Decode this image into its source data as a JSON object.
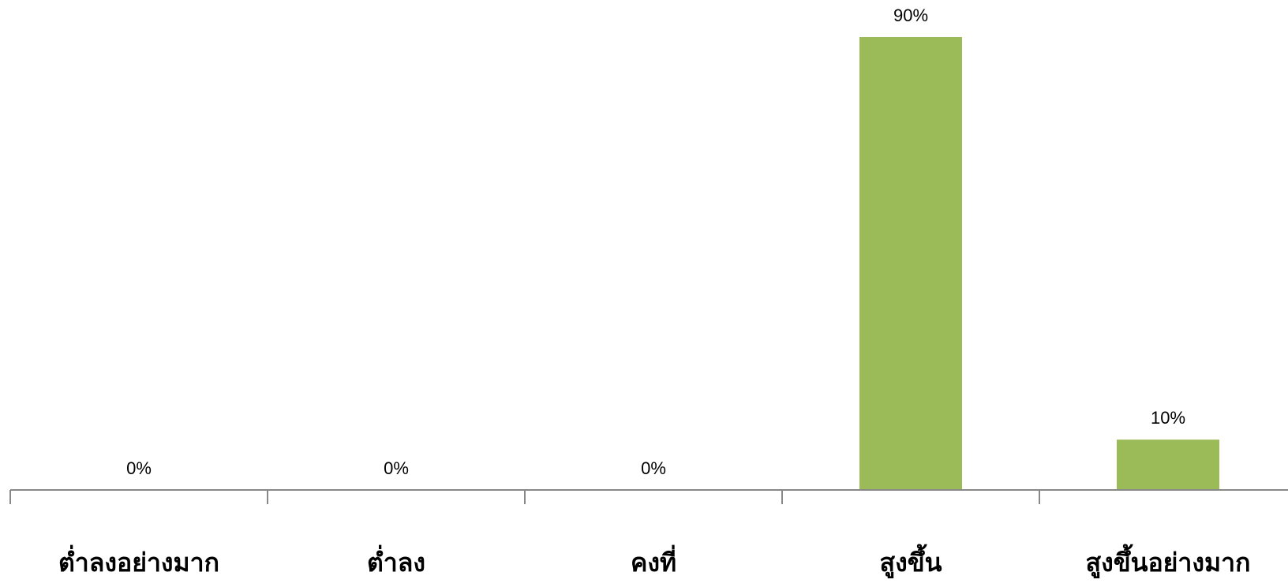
{
  "chart_data": {
    "type": "bar",
    "categories": [
      "ต่ำลงอย่างมาก",
      "ต่ำลง",
      "คงที่",
      "สูงขึ้น",
      "สูงขึ้นอย่างมาก"
    ],
    "values": [
      0,
      0,
      0,
      90,
      10
    ],
    "data_labels": [
      "0%",
      "0%",
      "0%",
      "90%",
      "10%"
    ],
    "unit": "%",
    "ylim": [
      0,
      100
    ],
    "grid": false,
    "legend": "none",
    "bar_color": "#9bbb59",
    "axis_color": "#888888"
  }
}
